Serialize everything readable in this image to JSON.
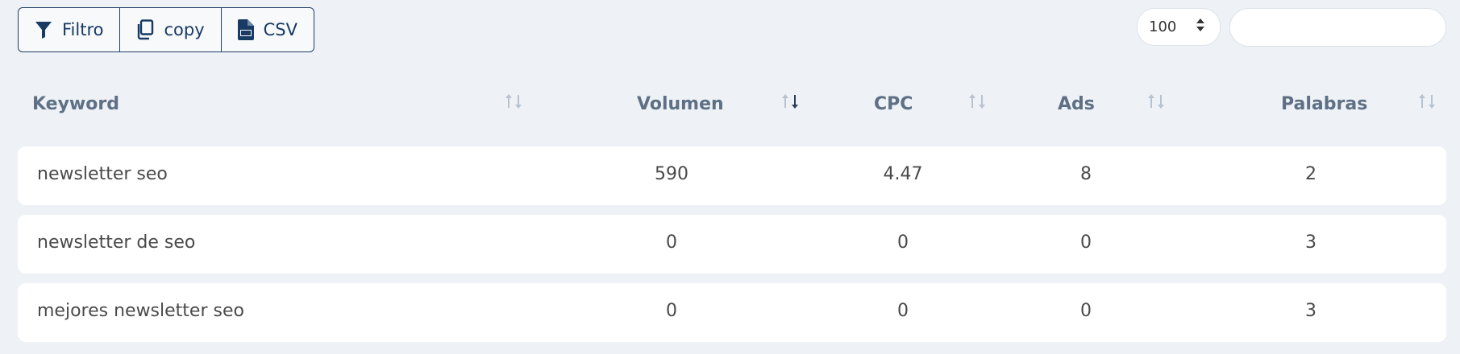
{
  "toolbar": {
    "buttons": [
      {
        "label": "Filtro",
        "icon": "filter-icon"
      },
      {
        "label": "copy",
        "icon": "copy-icon"
      },
      {
        "label": "CSV",
        "icon": "csv-file-icon"
      }
    ]
  },
  "page_length": {
    "value": "100",
    "icon": "sort-updown-icon"
  },
  "search": {
    "value": "",
    "placeholder": ""
  },
  "table": {
    "columns": [
      {
        "label": "Keyword",
        "sort": "none"
      },
      {
        "label": "Volumen",
        "sort": "descending"
      },
      {
        "label": "CPC",
        "sort": "none"
      },
      {
        "label": "Ads",
        "sort": "none"
      },
      {
        "label": "Palabras",
        "sort": "none"
      }
    ],
    "rows": [
      {
        "keyword": "newsletter seo",
        "volumen": "590",
        "cpc": "4.47",
        "ads": "8",
        "palabras": "2"
      },
      {
        "keyword": "newsletter de seo",
        "volumen": "0",
        "cpc": "0",
        "ads": "0",
        "palabras": "3"
      },
      {
        "keyword": "mejores newsletter seo",
        "volumen": "0",
        "cpc": "0",
        "ads": "0",
        "palabras": "3"
      }
    ]
  },
  "colors": {
    "accent": "#183a63",
    "header_text": "#5e7085",
    "background": "#eef1f5",
    "row_bg": "#ffffff"
  }
}
